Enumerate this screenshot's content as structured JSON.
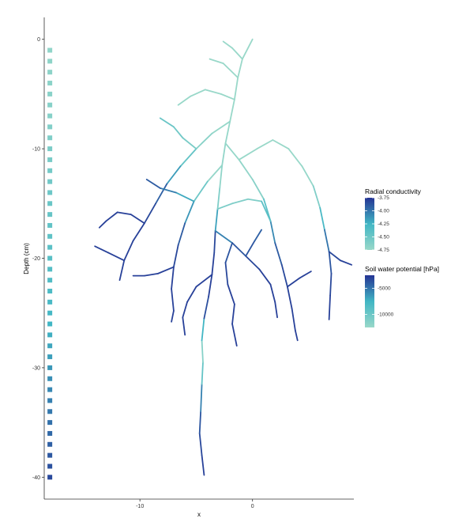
{
  "chart_data": {
    "type": "line",
    "title": "",
    "xlabel": "x",
    "ylabel": "Depth (cm)",
    "xlim": [
      -18.5,
      9
    ],
    "ylim": [
      -42,
      2
    ],
    "x_ticks": [
      {
        "value": -10,
        "label": "-10"
      },
      {
        "value": 0,
        "label": "0"
      }
    ],
    "y_ticks": [
      {
        "value": 0,
        "label": "0"
      },
      {
        "value": -10,
        "label": "-10"
      },
      {
        "value": -20,
        "label": "-20"
      },
      {
        "value": -30,
        "label": "-30"
      },
      {
        "value": -40,
        "label": "-40"
      }
    ],
    "grid": false,
    "colors": {
      "low": "#99D8C9",
      "mid": "#41B6C4",
      "high": "#253494",
      "axis": "#333333"
    },
    "legends": [
      {
        "title": "Radial conductivity",
        "placement": "right",
        "range": [
          -4.75,
          -3.75
        ],
        "ticks": [
          {
            "value": -3.75,
            "label": "-3.75"
          },
          {
            "value": -4.0,
            "label": "-4.00"
          },
          {
            "value": -4.25,
            "label": "-4.25"
          },
          {
            "value": -4.5,
            "label": "-4.50"
          },
          {
            "value": -4.75,
            "label": "-4.75"
          }
        ]
      },
      {
        "title": "Soil water potential [hPa]",
        "placement": "right",
        "range": [
          -12500,
          -2500
        ],
        "ticks": [
          {
            "value": -5000,
            "label": "-5000"
          },
          {
            "value": -10000,
            "label": "-10000"
          }
        ]
      }
    ],
    "soil_profile": {
      "x": -18,
      "depths": [
        -1,
        -2,
        -3,
        -4,
        -5,
        -6,
        -7,
        -8,
        -9,
        -10,
        -11,
        -12,
        -13,
        -14,
        -15,
        -16,
        -17,
        -18,
        -19,
        -20,
        -21,
        -22,
        -23,
        -24,
        -25,
        -26,
        -27,
        -28,
        -29,
        -30,
        -31,
        -32,
        -33,
        -34,
        -35,
        -36,
        -37,
        -38,
        -39,
        -40
      ],
      "potential": [
        -12000,
        -11900,
        -11800,
        -11700,
        -11600,
        -11500,
        -11400,
        -11200,
        -11000,
        -10800,
        -10600,
        -10400,
        -10200,
        -10000,
        -9800,
        -9600,
        -9400,
        -9200,
        -9000,
        -8800,
        -8600,
        -8400,
        -8200,
        -8000,
        -7800,
        -7500,
        -7200,
        -6900,
        -6600,
        -6300,
        -6000,
        -5700,
        -5400,
        -5100,
        -4800,
        -4500,
        -4200,
        -3900,
        -3600,
        -3300
      ]
    },
    "roots": [
      {
        "points": [
          [
            -4.3,
            -39.8
          ],
          [
            -4.5,
            -38
          ],
          [
            -4.7,
            -36
          ],
          [
            -4.6,
            -34
          ],
          [
            -4.5,
            -31.5
          ],
          [
            -4.4,
            -29.5
          ],
          [
            -4.5,
            -27.5
          ],
          [
            -4.3,
            -25.5
          ],
          [
            -3.9,
            -23.5
          ],
          [
            -3.6,
            -21.5
          ],
          [
            -3.4,
            -19.5
          ],
          [
            -3.3,
            -17.5
          ],
          [
            -3.1,
            -15.5
          ],
          [
            -2.9,
            -13.5
          ],
          [
            -2.7,
            -11.5
          ],
          [
            -2.4,
            -9.5
          ],
          [
            -2.0,
            -7.5
          ],
          [
            -1.6,
            -5.5
          ],
          [
            -1.3,
            -3.5
          ],
          [
            -0.9,
            -1.8
          ],
          [
            0,
            0
          ]
        ],
        "conductivity": [
          -3.8,
          -3.8,
          -3.85,
          -3.9,
          -4.2,
          -4.7,
          -4.6,
          -3.9,
          -3.8,
          -3.8,
          -3.8,
          -3.85,
          -4.5,
          -4.7,
          -4.7,
          -4.72,
          -4.74,
          -4.75,
          -4.75,
          -4.75,
          -4.75
        ]
      },
      {
        "points": [
          [
            -1.6,
            -5.5
          ],
          [
            -2.8,
            -5.0
          ],
          [
            -4.2,
            -4.6
          ],
          [
            -5.5,
            -5.2
          ],
          [
            -6.6,
            -6.0
          ]
        ],
        "conductivity": [
          -4.75,
          -4.75,
          -4.75,
          -4.75,
          -4.74
        ]
      },
      {
        "points": [
          [
            -1.3,
            -3.5
          ],
          [
            -2.6,
            -2.2
          ],
          [
            -3.8,
            -1.8
          ]
        ],
        "conductivity": [
          -4.75,
          -4.75,
          -4.75
        ]
      },
      {
        "points": [
          [
            -2.0,
            -7.5
          ],
          [
            -3.6,
            -8.6
          ],
          [
            -5.0,
            -10.0
          ],
          [
            -6.4,
            -11.6
          ],
          [
            -7.6,
            -13.2
          ],
          [
            -8.6,
            -15.0
          ],
          [
            -9.6,
            -16.8
          ],
          [
            -10.6,
            -18.4
          ],
          [
            -11.4,
            -20.2
          ],
          [
            -11.8,
            -22.0
          ]
        ],
        "conductivity": [
          -4.74,
          -4.72,
          -4.6,
          -4.3,
          -4.0,
          -3.85,
          -3.8,
          -3.8,
          -3.8,
          -3.8
        ]
      },
      {
        "points": [
          [
            -9.6,
            -16.8
          ],
          [
            -10.8,
            -16.0
          ],
          [
            -12.0,
            -15.8
          ],
          [
            -13.0,
            -16.6
          ],
          [
            -13.6,
            -17.2
          ]
        ],
        "conductivity": [
          -3.8,
          -3.8,
          -3.8,
          -3.8,
          -3.8
        ]
      },
      {
        "points": [
          [
            -11.4,
            -20.2
          ],
          [
            -12.8,
            -19.5
          ],
          [
            -14.0,
            -18.9
          ]
        ],
        "conductivity": [
          -3.8,
          -3.8,
          -3.8
        ]
      },
      {
        "points": [
          [
            -5.0,
            -10.0
          ],
          [
            -6.2,
            -9.0
          ],
          [
            -7.0,
            -8.0
          ],
          [
            -8.2,
            -7.2
          ]
        ],
        "conductivity": [
          -4.6,
          -4.55,
          -4.5,
          -4.45
        ]
      },
      {
        "points": [
          [
            -2.4,
            -9.5
          ],
          [
            -1.2,
            -11.0
          ],
          [
            0.0,
            -12.8
          ],
          [
            1.0,
            -14.6
          ],
          [
            1.6,
            -16.6
          ],
          [
            2.0,
            -18.6
          ],
          [
            2.6,
            -20.6
          ],
          [
            3.1,
            -22.6
          ],
          [
            3.5,
            -24.6
          ],
          [
            3.8,
            -26.6
          ],
          [
            4.0,
            -27.5
          ]
        ],
        "conductivity": [
          -4.74,
          -4.72,
          -4.7,
          -4.6,
          -4.2,
          -3.95,
          -3.85,
          -3.8,
          -3.8,
          -3.8,
          -3.8
        ]
      },
      {
        "points": [
          [
            -1.2,
            -11.0
          ],
          [
            0.4,
            -10.0
          ],
          [
            1.8,
            -9.2
          ],
          [
            3.2,
            -10.0
          ],
          [
            4.4,
            -11.6
          ],
          [
            5.4,
            -13.4
          ],
          [
            6.0,
            -15.4
          ],
          [
            6.4,
            -17.4
          ],
          [
            6.8,
            -19.4
          ],
          [
            7.0,
            -21.4
          ],
          [
            6.9,
            -23.4
          ],
          [
            6.8,
            -25.6
          ]
        ],
        "conductivity": [
          -4.74,
          -4.75,
          -4.75,
          -4.75,
          -4.74,
          -4.72,
          -4.5,
          -4.1,
          -3.9,
          -3.85,
          -3.8,
          -3.8
        ]
      },
      {
        "points": [
          [
            6.8,
            -19.4
          ],
          [
            7.8,
            -20.2
          ],
          [
            8.8,
            -20.6
          ]
        ],
        "conductivity": [
          -3.85,
          -3.8,
          -3.8
        ]
      },
      {
        "points": [
          [
            -2.7,
            -11.5
          ],
          [
            -4.0,
            -13.0
          ],
          [
            -5.2,
            -14.8
          ],
          [
            -6.0,
            -16.8
          ],
          [
            -6.6,
            -18.8
          ],
          [
            -7.0,
            -20.8
          ],
          [
            -7.2,
            -22.8
          ],
          [
            -7.0,
            -24.8
          ],
          [
            -7.2,
            -25.8
          ]
        ],
        "conductivity": [
          -4.74,
          -4.7,
          -4.3,
          -3.95,
          -3.85,
          -3.8,
          -3.8,
          -3.8,
          -3.8
        ]
      },
      {
        "points": [
          [
            -7.0,
            -20.8
          ],
          [
            -8.4,
            -21.4
          ],
          [
            -9.6,
            -21.6
          ],
          [
            -10.6,
            -21.6
          ]
        ],
        "conductivity": [
          -3.8,
          -3.8,
          -3.8,
          -3.8
        ]
      },
      {
        "points": [
          [
            -3.3,
            -17.5
          ],
          [
            -1.8,
            -18.6
          ],
          [
            -0.6,
            -19.8
          ],
          [
            0.6,
            -21.0
          ],
          [
            1.6,
            -22.4
          ],
          [
            2.0,
            -24.0
          ],
          [
            2.2,
            -25.4
          ]
        ],
        "conductivity": [
          -4.2,
          -3.9,
          -3.85,
          -3.8,
          -3.8,
          -3.8,
          -3.8
        ]
      },
      {
        "points": [
          [
            -3.6,
            -21.5
          ],
          [
            -5.0,
            -22.6
          ],
          [
            -5.8,
            -24.0
          ],
          [
            -6.2,
            -25.4
          ],
          [
            -6.0,
            -27.0
          ]
        ],
        "conductivity": [
          -3.8,
          -3.8,
          -3.8,
          -3.8,
          -3.8
        ]
      },
      {
        "points": [
          [
            -3.1,
            -15.5
          ],
          [
            -1.8,
            -15.0
          ],
          [
            -0.4,
            -14.6
          ],
          [
            0.8,
            -14.8
          ],
          [
            1.6,
            -16.6
          ]
        ],
        "conductivity": [
          -4.55,
          -4.6,
          -4.62,
          -4.6,
          -4.2
        ]
      },
      {
        "points": [
          [
            -0.9,
            -1.8
          ],
          [
            -1.8,
            -0.8
          ],
          [
            -2.6,
            -0.2
          ]
        ],
        "conductivity": [
          -4.75,
          -4.75,
          -4.75
        ]
      },
      {
        "points": [
          [
            -0.6,
            -19.8
          ],
          [
            0.2,
            -18.4
          ],
          [
            0.8,
            -17.4
          ]
        ],
        "conductivity": [
          -3.85,
          -3.9,
          -3.95
        ]
      },
      {
        "points": [
          [
            3.1,
            -22.6
          ],
          [
            4.2,
            -21.8
          ],
          [
            5.2,
            -21.2
          ]
        ],
        "conductivity": [
          -3.8,
          -3.8,
          -3.8
        ]
      },
      {
        "points": [
          [
            -1.8,
            -18.6
          ],
          [
            -2.4,
            -20.4
          ],
          [
            -2.2,
            -22.4
          ],
          [
            -1.6,
            -24.2
          ],
          [
            -1.8,
            -26.0
          ],
          [
            -1.4,
            -28.0
          ]
        ],
        "conductivity": [
          -3.9,
          -3.85,
          -3.8,
          -3.8,
          -3.8,
          -3.8
        ]
      },
      {
        "points": [
          [
            -5.2,
            -14.8
          ],
          [
            -6.8,
            -14.0
          ],
          [
            -8.2,
            -13.6
          ],
          [
            -9.4,
            -12.8
          ]
        ],
        "conductivity": [
          -4.3,
          -4.1,
          -3.95,
          -3.85
        ]
      }
    ]
  }
}
